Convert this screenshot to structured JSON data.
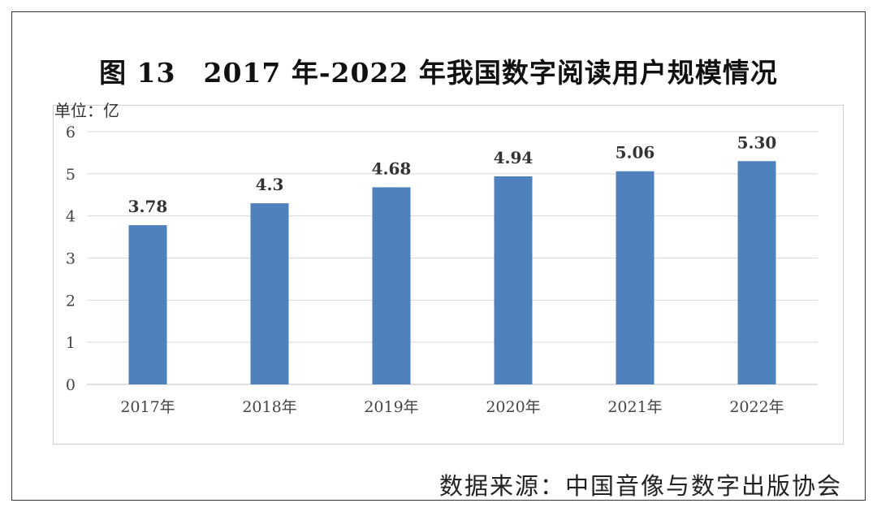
{
  "chart_data": {
    "type": "bar",
    "title": "图 13　2017 年-2022 年我国数字阅读用户规模情况",
    "unit_label": "单位：亿",
    "categories": [
      "2017年",
      "2018年",
      "2019年",
      "2020年",
      "2021年",
      "2022年"
    ],
    "values": [
      3.78,
      4.3,
      4.68,
      4.94,
      5.06,
      5.3
    ],
    "data_labels": [
      "3.78",
      "4.3",
      "4.68",
      "4.94",
      "5.06",
      "5.30"
    ],
    "yticks": [
      "0",
      "1",
      "2",
      "3",
      "4",
      "5",
      "6"
    ],
    "ylim": [
      0,
      6
    ],
    "grid": true,
    "legend": "none",
    "bar_color": "#4f81bd",
    "source": "数据来源：中国音像与数字出版协会"
  }
}
